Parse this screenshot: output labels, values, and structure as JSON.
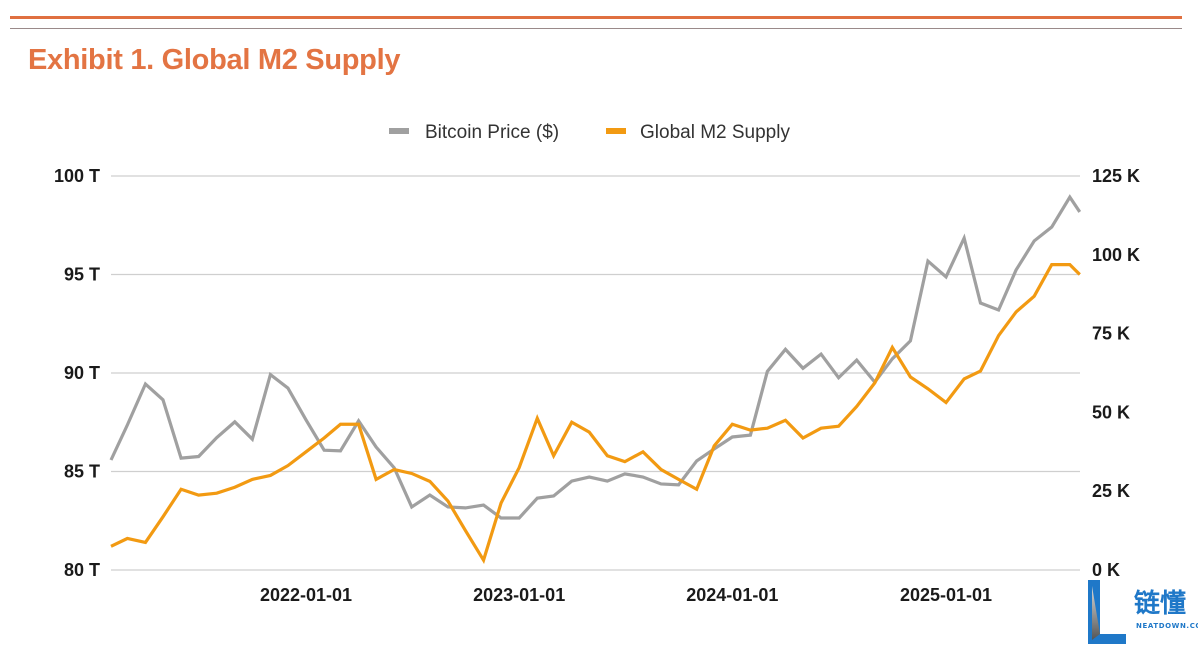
{
  "header": {
    "title": "Exhibit 1. Global M2 Supply"
  },
  "logo": {
    "cn_text": "链懂",
    "en_text": "NEATDOWN.COM"
  },
  "chart_data": {
    "type": "line",
    "title": "Exhibit 1. Global M2 Supply",
    "legend_position": "top",
    "grid": true,
    "x_ticks": [
      "2022-01-01",
      "2023-01-01",
      "2024-01-01",
      "2025-01-01"
    ],
    "y_left": {
      "ylim": [
        80,
        100
      ],
      "ticks": [
        80,
        85,
        90,
        95,
        100
      ],
      "tick_labels": [
        "80 T",
        "85 T",
        "90 T",
        "95 T",
        "100 T"
      ],
      "unit": "T"
    },
    "y_right": {
      "ylim": [
        0,
        125000
      ],
      "ticks": [
        0,
        25000,
        50000,
        75000,
        100000,
        125000
      ],
      "tick_labels": [
        "0 K",
        "25 K",
        "50 K",
        "75 K",
        "100 K",
        "125 K"
      ]
    },
    "x": [
      "2021-02-01",
      "2021-03-01",
      "2021-04-01",
      "2021-05-01",
      "2021-06-01",
      "2021-07-01",
      "2021-08-01",
      "2021-09-01",
      "2021-10-01",
      "2021-11-01",
      "2021-12-01",
      "2022-01-01",
      "2022-02-01",
      "2022-03-01",
      "2022-04-01",
      "2022-05-01",
      "2022-06-01",
      "2022-07-01",
      "2022-08-01",
      "2022-09-01",
      "2022-10-01",
      "2022-11-01",
      "2022-12-01",
      "2023-01-01",
      "2023-02-01",
      "2023-03-01",
      "2023-04-01",
      "2023-05-01",
      "2023-06-01",
      "2023-07-01",
      "2023-08-01",
      "2023-09-01",
      "2023-10-01",
      "2023-11-01",
      "2023-12-01",
      "2024-01-01",
      "2024-02-01",
      "2024-03-01",
      "2024-04-01",
      "2024-05-01",
      "2024-06-01",
      "2024-07-01",
      "2024-08-01",
      "2024-09-01",
      "2024-10-01",
      "2024-11-01",
      "2024-12-01",
      "2025-01-01",
      "2025-02-01",
      "2025-03-01",
      "2025-04-01",
      "2025-05-01",
      "2025-06-01",
      "2025-07-01",
      "2025-08-01",
      "2025-08-18"
    ],
    "series": [
      {
        "name": "Bitcoin Price ($)",
        "axis": "right",
        "color": "#a0a0a0",
        "values": [
          34900,
          46000,
          59000,
          54000,
          35500,
          36000,
          42000,
          47000,
          41500,
          62000,
          57700,
          47600,
          38000,
          37800,
          47300,
          39000,
          32400,
          20000,
          23800,
          20000,
          19700,
          20600,
          16500,
          16500,
          22800,
          23500,
          28200,
          29500,
          28200,
          30500,
          29500,
          27300,
          27000,
          34600,
          38400,
          42200,
          42800,
          63000,
          70000,
          64000,
          68500,
          61000,
          66600,
          59600,
          67000,
          72700,
          98000,
          93000,
          105300,
          84700,
          82500,
          95200,
          104400,
          108800,
          118300,
          113600
        ]
      },
      {
        "name": "Global M2 Supply",
        "axis": "left",
        "color": "#f29a12",
        "values": [
          81.2,
          81.6,
          81.4,
          82.7,
          84.1,
          83.8,
          83.9,
          84.2,
          84.6,
          84.8,
          85.3,
          86.0,
          86.7,
          87.4,
          87.4,
          84.6,
          85.1,
          84.9,
          84.5,
          83.5,
          82.0,
          80.5,
          83.4,
          85.2,
          87.7,
          85.8,
          87.5,
          87.0,
          85.8,
          85.5,
          86.0,
          85.1,
          84.6,
          84.1,
          86.3,
          87.4,
          87.1,
          87.2,
          87.6,
          86.7,
          87.2,
          87.3,
          88.3,
          89.5,
          91.3,
          89.8,
          89.2,
          88.5,
          89.7,
          90.1,
          91.9,
          93.1,
          93.9,
          95.5,
          95.5,
          95.0
        ]
      }
    ]
  }
}
